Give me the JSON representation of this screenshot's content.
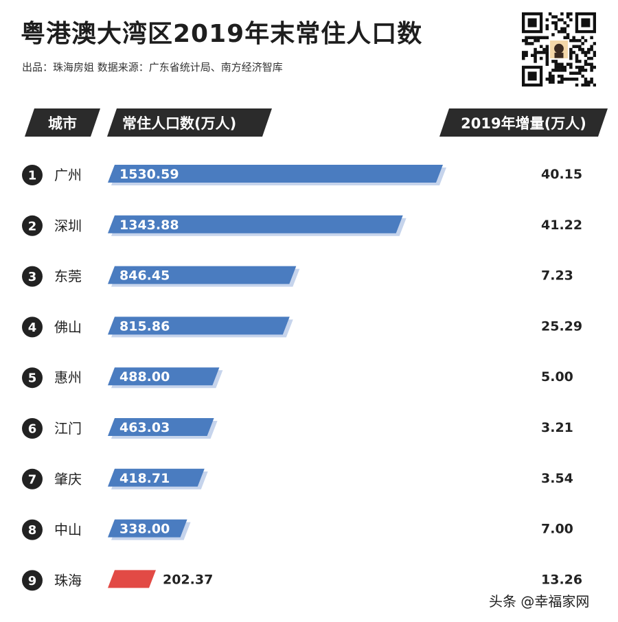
{
  "header": {
    "title": "粤港澳大湾区2019年末常住人口数",
    "subtitle": "出品：珠海房姐  数据来源：广东省统计局、南方经济智库"
  },
  "table_headers": {
    "city": "城市",
    "population": "常住人口数(万人)",
    "increase": "2019年增量(万人)"
  },
  "chart_data": {
    "type": "bar",
    "orientation": "horizontal",
    "title": "粤港澳大湾区2019年末常住人口数",
    "categories": [
      "广州",
      "深圳",
      "东莞",
      "佛山",
      "惠州",
      "江门",
      "肇庆",
      "中山",
      "珠海"
    ],
    "ranks": [
      "1",
      "2",
      "3",
      "4",
      "5",
      "6",
      "7",
      "8",
      "9"
    ],
    "series": [
      {
        "name": "常住人口数(万人)",
        "values": [
          1530.59,
          1343.88,
          846.45,
          815.86,
          488.0,
          463.03,
          418.71,
          338.0,
          202.37
        ],
        "labels": [
          "1530.59",
          "1343.88",
          "846.45",
          "815.86",
          "488.00",
          "463.03",
          "418.71",
          "338.00",
          "202.37"
        ]
      },
      {
        "name": "2019年增量(万人)",
        "values": [
          40.15,
          41.22,
          7.23,
          25.29,
          5.0,
          3.21,
          3.54,
          7.0,
          13.26
        ],
        "labels": [
          "40.15",
          "41.22",
          "7.23",
          "25.29",
          "5.00",
          "3.21",
          "3.54",
          "7.00",
          "13.26"
        ]
      }
    ],
    "highlight_category": "珠海",
    "colors": {
      "bar": "#4a7cc0",
      "bar_shadow": "#c6d4ec",
      "highlight": "#e24a45",
      "rank_circle": "#222222"
    }
  },
  "watermark": "头条 @幸福家网",
  "icons": {
    "qr": "qr-code-icon"
  }
}
